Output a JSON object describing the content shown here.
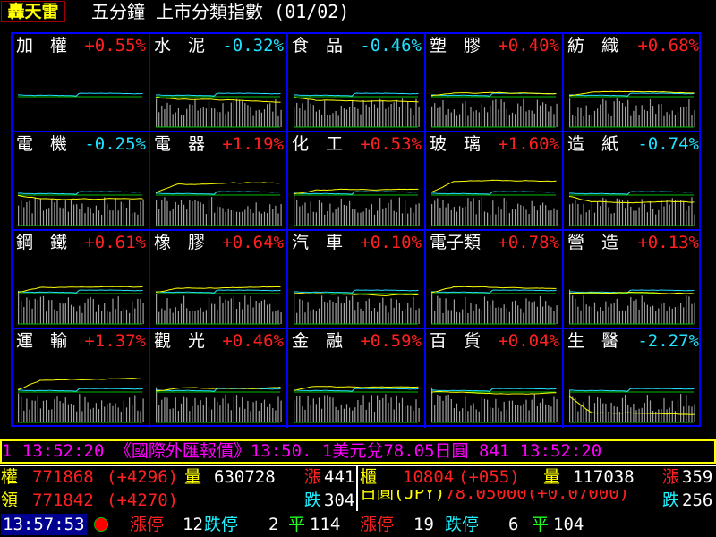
{
  "header": {
    "logo": "轟天雷",
    "title": "五分鐘 上市分類指數 (01/02)"
  },
  "colors": {
    "up": "#ff2020",
    "down": "#20e0ff",
    "market_line": "#20e0ff",
    "sector_line": "#ffff00",
    "baseline": "#00c000",
    "volume": "#a0a0a0",
    "grid": "#0000ff"
  },
  "sectors": [
    {
      "name": "加　權",
      "pct": "+0.55%"
    },
    {
      "name": "水　泥",
      "pct": "-0.32%"
    },
    {
      "name": "食　品",
      "pct": "-0.46%"
    },
    {
      "name": "塑　膠",
      "pct": "+0.40%"
    },
    {
      "name": "紡　織",
      "pct": "+0.68%"
    },
    {
      "name": "電　機",
      "pct": "-0.25%"
    },
    {
      "name": "電　器",
      "pct": "+1.19%"
    },
    {
      "name": "化　工",
      "pct": "+0.53%"
    },
    {
      "name": "玻　璃",
      "pct": "+1.60%"
    },
    {
      "name": "造　紙",
      "pct": "-0.74%"
    },
    {
      "name": "鋼　鐵",
      "pct": "+0.61%"
    },
    {
      "name": "橡　膠",
      "pct": "+0.64%"
    },
    {
      "name": "汽　車",
      "pct": "+0.10%"
    },
    {
      "name": "電子類",
      "pct": "+0.78%"
    },
    {
      "name": "營　造",
      "pct": "+0.13%"
    },
    {
      "name": "運　輸",
      "pct": "+1.37%"
    },
    {
      "name": "觀　光",
      "pct": "+0.46%"
    },
    {
      "name": "金　融",
      "pct": "+0.59%"
    },
    {
      "name": "百　貨",
      "pct": "+0.04%"
    },
    {
      "name": "生　醫",
      "pct": "-2.27%"
    }
  ],
  "ticker": "1 13:52:20 《國際外匯報價》13:50. 1美元兌78.05日圓     841 13:52:20",
  "listed": {
    "label": "權",
    "index": "771868",
    "change": "(+4296)",
    "vol_label": "量",
    "volume": "630728",
    "up_label": "漲",
    "up": "441",
    "lead_label": "領",
    "lead_index": "771842",
    "lead_change": "(+4270)",
    "down_label": "跌",
    "down": "304",
    "limit_up_label": "漲停",
    "limit_up": "12",
    "limit_down_label": "跌停",
    "limit_down": "2",
    "flat_label": "平",
    "flat": "114"
  },
  "otc": {
    "label": "櫃",
    "index": "10804",
    "change": "(+055)",
    "vol_label": "量",
    "volume": "117038",
    "up_label": "漲",
    "up": "359",
    "fx_label": "日圓(JPY)",
    "fx_value": "78.05000(+0.07000)",
    "down_label": "跌",
    "down": "256",
    "limit_up_label": "漲停",
    "limit_up": "19",
    "limit_down_label": "跌停",
    "limit_down": "6",
    "flat_label": "平",
    "flat": "104"
  },
  "clock": "13:57:53"
}
